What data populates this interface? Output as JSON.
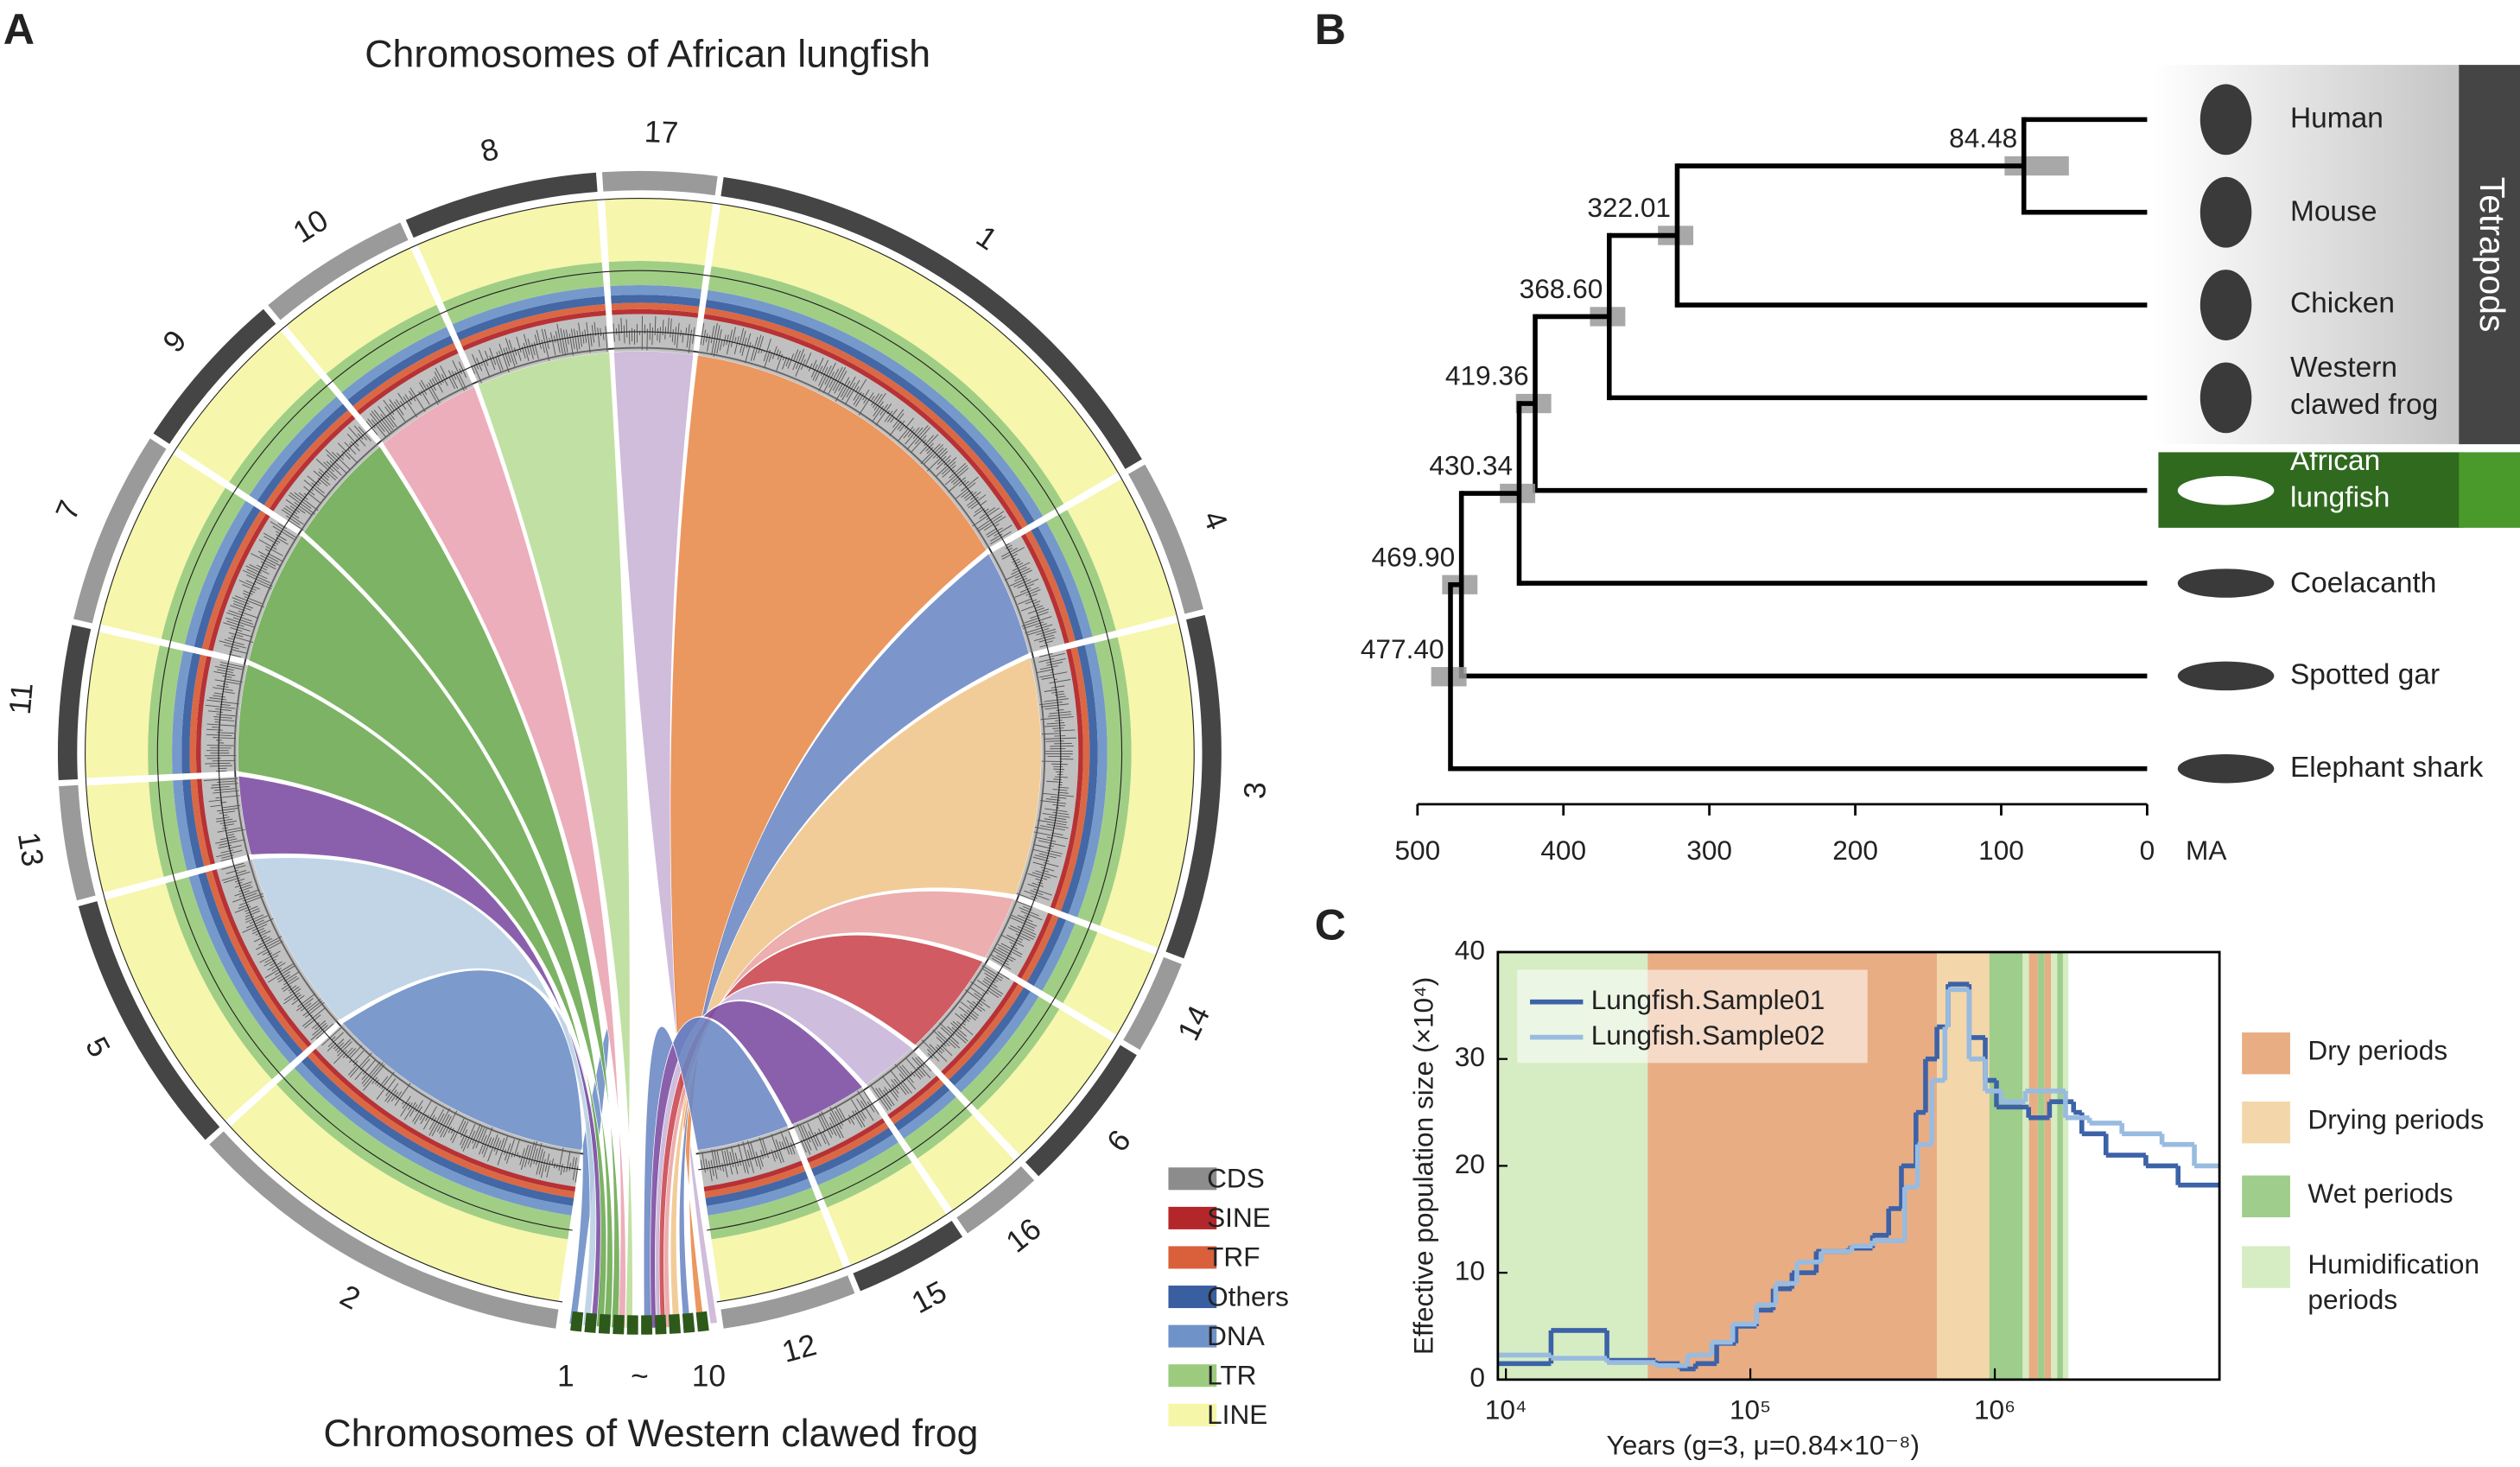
{
  "chart_data": [
    {
      "type": "circos",
      "panel_label": "A",
      "title": "Chromosomes of African lungfish",
      "subtitle": "Chromosomes of Western clawed frog",
      "categories": [
        "17",
        "1",
        "4",
        "3",
        "14",
        "6",
        "16",
        "15",
        "12",
        "2",
        "5",
        "13",
        "11",
        "7",
        "9",
        "10",
        "8"
      ],
      "frog_categories": [
        "1",
        "~",
        "10"
      ],
      "legend": [
        {
          "name": "CDS",
          "color": "#8c8c8c"
        },
        {
          "name": "SINE",
          "color": "#b3272a"
        },
        {
          "name": "TRF",
          "color": "#d9603b"
        },
        {
          "name": "Others",
          "color": "#3a5fa0"
        },
        {
          "name": "DNA",
          "color": "#6f93c8"
        },
        {
          "name": "LTR",
          "color": "#9ccb7e"
        },
        {
          "name": "LINE",
          "color": "#f6f6a8"
        }
      ]
    },
    {
      "type": "tree",
      "panel_label": "B",
      "leaves": [
        "Human",
        "Mouse",
        "Chicken",
        "Western clawed frog",
        "African lungfish",
        "Coelacanth",
        "Spotted gar",
        "Elephant shark"
      ],
      "group": "Tetrapods",
      "values": [
        84.48,
        322.01,
        368.6,
        419.36,
        430.34,
        469.9,
        477.4
      ],
      "value_labels": [
        "84.48",
        "322.01",
        "368.60",
        "419.36",
        "430.34",
        "469.90",
        "477.40"
      ],
      "xlim": [
        500,
        0
      ],
      "xticks": [
        500,
        400,
        300,
        200,
        100,
        0
      ],
      "xlabel": "MA"
    },
    {
      "type": "line",
      "panel_label": "C",
      "step": true,
      "xlog": true,
      "xlabel": "Years (g=3, μ=0.84×10⁻⁸)",
      "ylabel": "Effective population size (×10⁴)",
      "xlim": [
        9270,
        8300000
      ],
      "ylim": [
        0,
        40
      ],
      "xticks": [
        {
          "value": 10000,
          "label": "10⁴"
        },
        {
          "value": 100000,
          "label": "10⁵"
        },
        {
          "value": 1000000,
          "label": "10⁶"
        }
      ],
      "yticks": [
        0,
        10,
        20,
        30,
        40
      ],
      "series": [
        {
          "name": "Lungfish.Sample01",
          "color": "#3c62a8",
          "x": [
            9270,
            15300,
            25900,
            40900,
            51400,
            59700,
            72800,
            87300,
            106000,
            124000,
            148000,
            186000,
            252000,
            316000,
            368000,
            415000,
            476000,
            521000,
            580000,
            644000,
            785000,
            914000,
            1016000,
            1375000,
            1674000,
            2100000,
            2270000,
            2850000,
            4150000,
            5620000
          ],
          "values": [
            1.5,
            4.6,
            1.8,
            1.5,
            1.0,
            1.5,
            3.4,
            5.0,
            6.5,
            8.5,
            10,
            12,
            12.3,
            13.5,
            16,
            20,
            25,
            30,
            33,
            37,
            32,
            28,
            25.5,
            24.5,
            26,
            25,
            23,
            21,
            20,
            18.2
          ]
        },
        {
          "name": "Lungfish.Sample02",
          "color": "#98bbe0",
          "x": [
            9270,
            15300,
            25900,
            40900,
            55300,
            69500,
            84700,
            106000,
            127000,
            155000,
            195000,
            260000,
            316000,
            428000,
            483000,
            553000,
            625000,
            644000,
            785000,
            914000,
            1062000,
            1334000,
            1946000,
            2440000,
            3310000,
            4830000,
            6550000
          ],
          "values": [
            2.3,
            2.0,
            1.6,
            1.3,
            2.3,
            3.5,
            5.2,
            7,
            9,
            11,
            12,
            12.5,
            13,
            18,
            22,
            28,
            33,
            36.5,
            30,
            27,
            26,
            27,
            24.5,
            24,
            23,
            22,
            20
          ]
        }
      ],
      "periods": {
        "names": [
          "Dry periods",
          "Drying periods",
          "Wet periods",
          "Humidification periods"
        ],
        "colors": [
          "#e9ad84",
          "#f3d6aa",
          "#9fcd8b",
          "#d6ecc3"
        ],
        "spans": [
          {
            "period": 3,
            "start": 9270,
            "end": 38000
          },
          {
            "period": 0,
            "start": 38000,
            "end": 580000
          },
          {
            "period": 1,
            "start": 580000,
            "end": 950000
          },
          {
            "period": 2,
            "start": 950000,
            "end": 1300000
          },
          {
            "period": 3,
            "start": 1300000,
            "end": 1380000
          },
          {
            "period": 0,
            "start": 1380000,
            "end": 1500000
          },
          {
            "period": 2,
            "start": 1500000,
            "end": 1600000
          },
          {
            "period": 0,
            "start": 1600000,
            "end": 1700000
          },
          {
            "period": 3,
            "start": 1700000,
            "end": 1800000
          },
          {
            "period": 2,
            "start": 1800000,
            "end": 1900000
          },
          {
            "period": 3,
            "start": 1900000,
            "end": 2000000
          }
        ]
      }
    }
  ]
}
